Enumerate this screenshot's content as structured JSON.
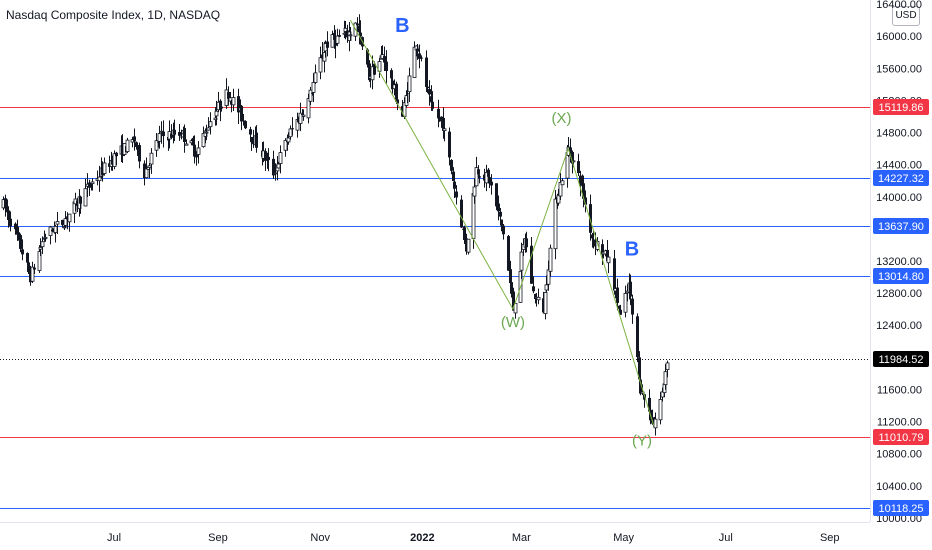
{
  "header": {
    "title": "Nasdaq Composite Index, 1D, NASDAQ",
    "currency": "USD"
  },
  "colors": {
    "candle": "#131722",
    "support_resistance_red": "#f23645",
    "support_resistance_blue": "#2962ff",
    "wave_line": "#7cb342",
    "wave_label_green": "#6aa84f",
    "wave_label_blue": "#2962ff",
    "last_price_bg": "#000000"
  },
  "chart_data": {
    "type": "candlestick",
    "title": "Nasdaq Composite Index, 1D, NASDAQ",
    "y_range": [
      9950,
      16450
    ],
    "x_range": [
      "2021-04-24",
      "2022-09-25"
    ],
    "y_ticks": [
      "16400.00",
      "16000.00",
      "15600.00",
      "15200.00",
      "14800.00",
      "14400.00",
      "14000.00",
      "13600.00",
      "13200.00",
      "12800.00",
      "12400.00",
      "12000.00",
      "11600.00",
      "11200.00",
      "10800.00",
      "10400.00",
      "10000.00"
    ],
    "x_ticks": [
      {
        "label": "Jul",
        "date": "2021-07-01"
      },
      {
        "label": "Sep",
        "date": "2021-09-01"
      },
      {
        "label": "Nov",
        "date": "2021-11-01"
      },
      {
        "label": "2022",
        "date": "2022-01-01",
        "bold": true
      },
      {
        "label": "Mar",
        "date": "2022-03-01"
      },
      {
        "label": "May",
        "date": "2022-05-01"
      },
      {
        "label": "Jul",
        "date": "2022-07-01"
      },
      {
        "label": "Sep",
        "date": "2022-09-01"
      }
    ],
    "price_path": [
      [
        "2021-04-26",
        13900
      ],
      [
        "2021-05-04",
        13500
      ],
      [
        "2021-05-12",
        13000
      ],
      [
        "2021-05-20",
        13500
      ],
      [
        "2021-06-01",
        13700
      ],
      [
        "2021-06-15",
        14100
      ],
      [
        "2021-07-01",
        14500
      ],
      [
        "2021-07-13",
        14700
      ],
      [
        "2021-07-19",
        14300
      ],
      [
        "2021-07-28",
        14750
      ],
      [
        "2021-08-10",
        14800
      ],
      [
        "2021-08-19",
        14550
      ],
      [
        "2021-08-27",
        14950
      ],
      [
        "2021-09-07",
        15300
      ],
      [
        "2021-09-20",
        14800
      ],
      [
        "2021-10-04",
        14300
      ],
      [
        "2021-10-14",
        14800
      ],
      [
        "2021-10-25",
        15200
      ],
      [
        "2021-11-04",
        15900
      ],
      [
        "2021-11-19",
        16050
      ],
      [
        "2021-11-22",
        16200
      ],
      [
        "2021-11-30",
        15500
      ],
      [
        "2021-12-08",
        15750
      ],
      [
        "2021-12-20",
        15000
      ],
      [
        "2021-12-28",
        15950
      ],
      [
        "2022-01-06",
        15100
      ],
      [
        "2022-01-13",
        14900
      ],
      [
        "2022-01-21",
        14000
      ],
      [
        "2022-01-27",
        13350
      ],
      [
        "2022-02-02",
        14350
      ],
      [
        "2022-02-10",
        14200
      ],
      [
        "2022-02-18",
        13550
      ],
      [
        "2022-02-24",
        12600
      ],
      [
        "2022-03-03",
        13500
      ],
      [
        "2022-03-08",
        12800
      ],
      [
        "2022-03-14",
        12600
      ],
      [
        "2022-03-21",
        13900
      ],
      [
        "2022-03-29",
        14600
      ],
      [
        "2022-04-05",
        14200
      ],
      [
        "2022-04-12",
        13500
      ],
      [
        "2022-04-22",
        13200
      ],
      [
        "2022-04-29",
        12500
      ],
      [
        "2022-05-04",
        12900
      ],
      [
        "2022-05-11",
        11600
      ],
      [
        "2022-05-19",
        11150
      ],
      [
        "2022-05-24",
        11550
      ],
      [
        "2022-05-27",
        11980
      ]
    ],
    "horizontal_levels": [
      {
        "price": 15119.86,
        "label": "15119.86",
        "color": "red"
      },
      {
        "price": 14227.32,
        "label": "14227.32",
        "color": "blue"
      },
      {
        "price": 13637.9,
        "label": "13637.90",
        "color": "blue"
      },
      {
        "price": 13014.8,
        "label": "13014.80",
        "color": "blue"
      },
      {
        "price": 11010.79,
        "label": "11010.79",
        "color": "red"
      },
      {
        "price": 10118.25,
        "label": "10118.25",
        "color": "blue"
      }
    ],
    "last_price": {
      "price": 11984.52,
      "label": "11984.52"
    },
    "wave_path": [
      [
        "2021-11-19",
        16200
      ],
      [
        "2022-02-24",
        12600
      ],
      [
        "2022-03-29",
        14600
      ],
      [
        "2022-05-19",
        11150
      ]
    ],
    "annotations": [
      {
        "text": "B",
        "date": "2021-12-20",
        "price": 16050,
        "color": "blue"
      },
      {
        "text": "(W)",
        "date": "2022-02-24",
        "price": 12380,
        "color": "green"
      },
      {
        "text": "(X)",
        "date": "2022-03-25",
        "price": 14920,
        "color": "green"
      },
      {
        "text": "B",
        "date": "2022-05-06",
        "price": 13270,
        "color": "blue"
      },
      {
        "text": "(Y)",
        "date": "2022-05-12",
        "price": 10900,
        "color": "green"
      }
    ]
  }
}
